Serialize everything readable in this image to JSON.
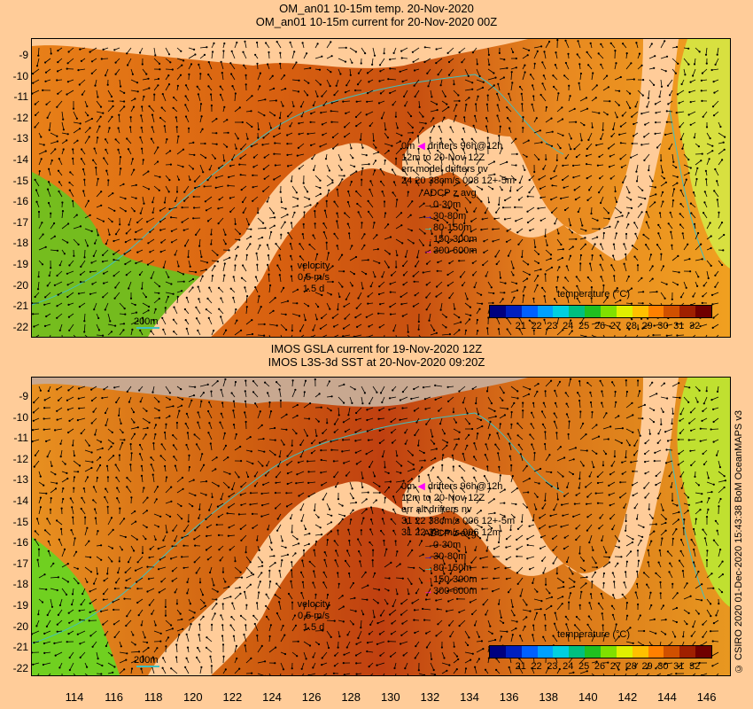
{
  "top": {
    "title_line1": "OM_an01 10-15m temp. 20-Nov-2020",
    "title_line2": "OM_an01 10-15m current for 20-Nov-2020 00Z",
    "drifters": [
      "0m",
      "drifters 96h@12h",
      "12m",
      "to 20-Nov 12Z",
      "err model drifters nv",
      "24 20 38cm/s 008 12+-5m"
    ],
    "adcp_title": "ADCP z avg",
    "adcp_items": [
      {
        "label": "0-30m",
        "color": "#000000"
      },
      {
        "label": "30-80m",
        "color": "#0000ff"
      },
      {
        "label": "80-150m",
        "color": "#00ffff"
      },
      {
        "label": "150-300m",
        "color": "#ff3300"
      },
      {
        "label": "300-600m",
        "color": "#ff00ff"
      }
    ],
    "velocity_title": "velocity",
    "velocity_speed": "0.5 m/s",
    "velocity_duration": "1.5 d",
    "contour_label": "200m",
    "cbar_title": "temperature (°C)"
  },
  "bottom": {
    "title_line1": "IMOS GSLA current for 19-Nov-2020 12Z",
    "title_line2": "IMOS L3S-3d SST at 20-Nov-2020 09:20Z",
    "drifters": [
      "0m",
      "drifters 96h@12h",
      "12m",
      "to 20-Nov 12Z",
      "err alt drifters nv",
      "31 22 38cm/s 006 12+-5m",
      "31 22 38cm/s 006 12m"
    ],
    "adcp_title": "ADCP z avg",
    "adcp_items": [
      {
        "label": "0-30m",
        "color": "#000000"
      },
      {
        "label": "30-80m",
        "color": "#0000ff"
      },
      {
        "label": "80-150m",
        "color": "#00ffff"
      },
      {
        "label": "150-300m",
        "color": "#ff3300"
      },
      {
        "label": "300-600m",
        "color": "#ff00ff"
      }
    ],
    "velocity_title": "velocity",
    "velocity_speed": "0.5 m/s",
    "velocity_duration": "1.5 d",
    "contour_label": "200m",
    "cbar_title": "temperature (°C)"
  },
  "colorbar_ticks": [
    "21",
    "22",
    "23",
    "24",
    "25",
    "26",
    "27",
    "28",
    "29",
    "30",
    "31",
    "32"
  ],
  "colorbar_colors": [
    "#000080",
    "#0020c0",
    "#0060ff",
    "#00a0ff",
    "#00d0e0",
    "#00c080",
    "#20c020",
    "#80e000",
    "#e0f000",
    "#ffc000",
    "#ff8000",
    "#d05000",
    "#a02000",
    "#700000"
  ],
  "lat_ticks": [
    "-9",
    "-10",
    "-11",
    "-12",
    "-13",
    "-14",
    "-15",
    "-16",
    "-17",
    "-18",
    "-19",
    "-20",
    "-21",
    "-22"
  ],
  "lon_ticks": [
    "114",
    "116",
    "118",
    "120",
    "122",
    "124",
    "126",
    "128",
    "130",
    "132",
    "134",
    "136",
    "138",
    "140",
    "142",
    "144",
    "146"
  ],
  "credit": "© CSIRO 2020   01-Dec-2020 15:43:38 BoM OceanMAPS v3",
  "colors": {
    "land": "#ffcc99",
    "ocean_warm": "#e07810",
    "ocean_hot": "#c05010",
    "ocean_mild": "#f0a020",
    "ocean_cool": "#40c020",
    "ocean_yellow": "#c8e020",
    "cloud": "#c8a890",
    "contour": "#40c0c0"
  }
}
